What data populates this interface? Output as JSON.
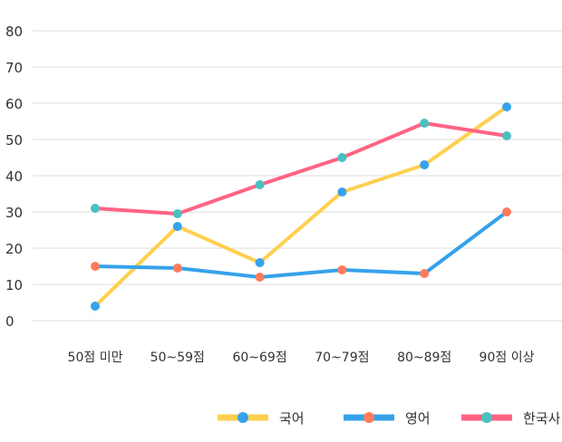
{
  "chart_data": {
    "type": "line",
    "title": "",
    "xlabel": "",
    "ylabel": "",
    "ylim": [
      0,
      80
    ],
    "yticks": [
      0,
      10,
      20,
      30,
      40,
      50,
      60,
      70,
      80
    ],
    "grid": true,
    "legend_position": "bottom-right",
    "categories": [
      "50점 미만",
      "50~59점",
      "60~69점",
      "70~79점",
      "80~89점",
      "90점 이상"
    ],
    "series": [
      {
        "name": "국어",
        "line_color": "#FFCF4F",
        "marker_color": "#36A2EB",
        "values": [
          4,
          26,
          16,
          35.5,
          43,
          59
        ]
      },
      {
        "name": "영어",
        "line_color": "#36A2EB",
        "marker_color": "#FF7B5C",
        "values": [
          15,
          14.5,
          12,
          14,
          13,
          30
        ]
      },
      {
        "name": "한국사",
        "line_color": "#FF6384",
        "marker_color": "#4BC0C0",
        "values": [
          31,
          29.5,
          37.5,
          45,
          54.5,
          51
        ]
      }
    ]
  }
}
